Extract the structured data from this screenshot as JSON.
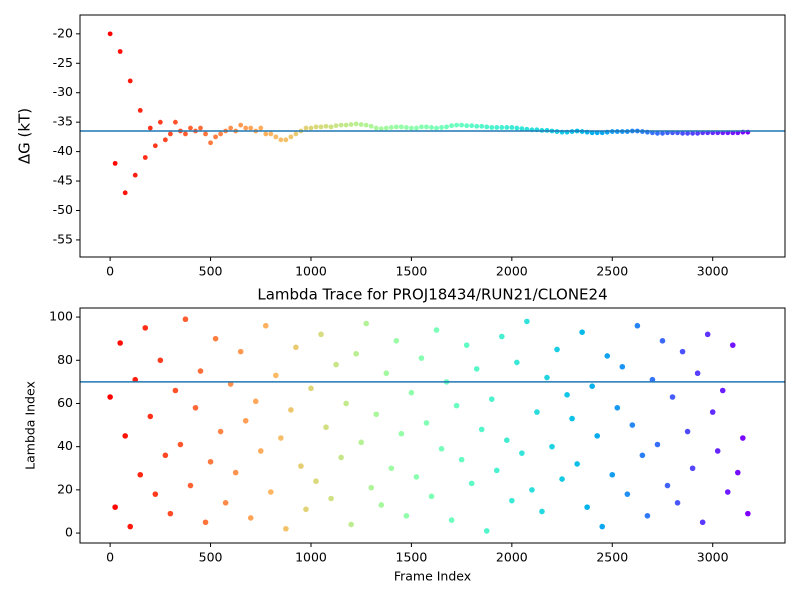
{
  "chart_data": [
    {
      "type": "scatter",
      "ylabel": "ΔG (kT)",
      "colormap": "rainbow_r",
      "line_color": "#1f77b4",
      "hline": -36.5,
      "xlim": [
        -150,
        3360
      ],
      "ylim": [
        -57.9,
        -16.8
      ],
      "xticks": [
        0,
        500,
        1000,
        1500,
        2000,
        2500,
        3000
      ],
      "yticks": [
        -55,
        -50,
        -45,
        -40,
        -35,
        -30,
        -25,
        -20
      ],
      "x": [
        0,
        25,
        50,
        75,
        100,
        125,
        150,
        175,
        200,
        225,
        250,
        275,
        300,
        325,
        350,
        375,
        400,
        425,
        450,
        475,
        500,
        525,
        550,
        575,
        600,
        625,
        650,
        675,
        700,
        725,
        750,
        775,
        800,
        825,
        850,
        875,
        900,
        925,
        950,
        975,
        1000,
        1025,
        1050,
        1075,
        1100,
        1125,
        1150,
        1175,
        1200,
        1225,
        1250,
        1275,
        1300,
        1325,
        1350,
        1375,
        1400,
        1425,
        1450,
        1475,
        1500,
        1525,
        1550,
        1575,
        1600,
        1625,
        1650,
        1675,
        1700,
        1725,
        1750,
        1775,
        1800,
        1825,
        1850,
        1875,
        1900,
        1925,
        1950,
        1975,
        2000,
        2025,
        2050,
        2075,
        2100,
        2125,
        2150,
        2175,
        2200,
        2225,
        2250,
        2275,
        2300,
        2325,
        2350,
        2375,
        2400,
        2425,
        2450,
        2475,
        2500,
        2525,
        2550,
        2575,
        2600,
        2625,
        2650,
        2675,
        2700,
        2725,
        2750,
        2775,
        2800,
        2825,
        2850,
        2875,
        2900,
        2925,
        2950,
        2975,
        3000,
        3025,
        3050,
        3075,
        3100,
        3125,
        3150,
        3175
      ],
      "values": [
        -20,
        -42,
        -23,
        -47,
        -28,
        -44,
        -33,
        -41,
        -36,
        -39,
        -35,
        -38,
        -37,
        -35,
        -36.5,
        -37,
        -36,
        -36.5,
        -36,
        -37,
        -38.5,
        -37.5,
        -37,
        -36.5,
        -36,
        -36.5,
        -35.5,
        -36,
        -36,
        -36.5,
        -36,
        -37,
        -37,
        -37.5,
        -38,
        -38,
        -37.5,
        -37,
        -36.5,
        -36,
        -36,
        -35.8,
        -35.8,
        -35.7,
        -35.8,
        -35.6,
        -35.5,
        -35.5,
        -35.4,
        -35.3,
        -35.4,
        -35.5,
        -35.7,
        -36,
        -36.1,
        -36,
        -35.9,
        -35.8,
        -35.8,
        -35.9,
        -36,
        -36,
        -35.8,
        -35.8,
        -35.9,
        -36,
        -35.9,
        -35.8,
        -35.6,
        -35.5,
        -35.5,
        -35.6,
        -35.6,
        -35.7,
        -35.7,
        -35.8,
        -35.9,
        -35.9,
        -35.9,
        -35.9,
        -35.9,
        -36,
        -36.1,
        -36.2,
        -36.3,
        -36.3,
        -36.4,
        -36.4,
        -36.5,
        -36.6,
        -36.7,
        -36.7,
        -36.6,
        -36.5,
        -36.6,
        -36.7,
        -36.8,
        -36.8,
        -36.8,
        -36.7,
        -36.6,
        -36.6,
        -36.6,
        -36.6,
        -36.5,
        -36.5,
        -36.6,
        -36.7,
        -36.8,
        -36.9,
        -36.9,
        -36.8,
        -36.8,
        -36.8,
        -36.9,
        -36.9,
        -36.9,
        -36.9,
        -36.8,
        -36.8,
        -36.8,
        -36.8,
        -36.8,
        -36.8,
        -36.8,
        -36.8,
        -36.7,
        -36.7
      ]
    },
    {
      "type": "scatter",
      "title": "Lambda Trace for PROJ18434/RUN21/CLONE24",
      "xlabel": "Frame Index",
      "ylabel": "Lambda Index",
      "colormap": "rainbow_r",
      "line_color": "#1f77b4",
      "hline": 70,
      "xlim": [
        -150,
        3360
      ],
      "ylim": [
        -4.6,
        104.2
      ],
      "xticks": [
        0,
        500,
        1000,
        1500,
        2000,
        2500,
        3000
      ],
      "yticks": [
        0,
        20,
        40,
        60,
        80,
        100
      ],
      "x": [
        0,
        25,
        50,
        75,
        100,
        125,
        150,
        175,
        200,
        225,
        250,
        275,
        300,
        325,
        350,
        375,
        400,
        425,
        450,
        475,
        500,
        525,
        550,
        575,
        600,
        625,
        650,
        675,
        700,
        725,
        750,
        775,
        800,
        825,
        850,
        875,
        900,
        925,
        950,
        975,
        1000,
        1025,
        1050,
        1075,
        1100,
        1125,
        1150,
        1175,
        1200,
        1225,
        1250,
        1275,
        1300,
        1325,
        1350,
        1375,
        1400,
        1425,
        1450,
        1475,
        1500,
        1525,
        1550,
        1575,
        1600,
        1625,
        1650,
        1675,
        1700,
        1725,
        1750,
        1775,
        1800,
        1825,
        1850,
        1875,
        1900,
        1925,
        1950,
        1975,
        2000,
        2025,
        2050,
        2075,
        2100,
        2125,
        2150,
        2175,
        2200,
        2225,
        2250,
        2275,
        2300,
        2325,
        2350,
        2375,
        2400,
        2425,
        2450,
        2475,
        2500,
        2525,
        2550,
        2575,
        2600,
        2625,
        2650,
        2675,
        2700,
        2725,
        2750,
        2775,
        2800,
        2825,
        2850,
        2875,
        2900,
        2925,
        2950,
        2975,
        3000,
        3025,
        3050,
        3075,
        3100,
        3125,
        3150,
        3175
      ],
      "values": [
        63,
        12,
        88,
        45,
        3,
        71,
        27,
        95,
        54,
        18,
        80,
        36,
        9,
        66,
        41,
        99,
        22,
        58,
        75,
        5,
        33,
        90,
        47,
        14,
        69,
        28,
        84,
        52,
        7,
        61,
        38,
        96,
        19,
        73,
        44,
        2,
        57,
        86,
        31,
        11,
        67,
        24,
        92,
        49,
        16,
        78,
        35,
        60,
        4,
        83,
        42,
        97,
        21,
        55,
        13,
        74,
        30,
        89,
        46,
        8,
        65,
        26,
        81,
        51,
        17,
        94,
        39,
        70,
        6,
        59,
        34,
        87,
        23,
        76,
        48,
        1,
        62,
        29,
        91,
        43,
        15,
        79,
        37,
        98,
        20,
        56,
        10,
        72,
        40,
        85,
        25,
        64,
        53,
        32,
        93,
        12,
        68,
        45,
        3,
        82,
        27,
        58,
        77,
        18,
        50,
        96,
        36,
        8,
        71,
        41,
        89,
        22,
        63,
        14,
        84,
        47,
        30,
        74,
        5,
        92,
        56,
        38,
        66,
        19,
        87,
        28,
        44,
        9
      ],
      "marker_large": true
    }
  ]
}
